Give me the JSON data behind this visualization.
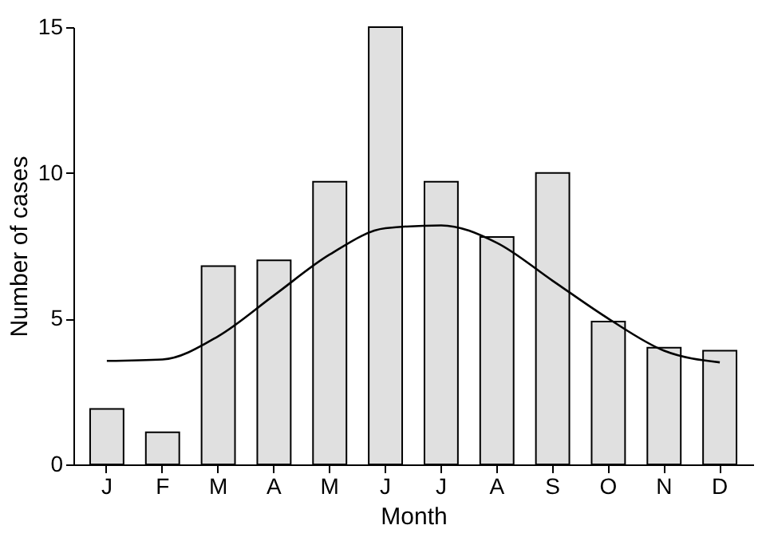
{
  "chart_data": {
    "type": "bar",
    "xlabel": "Month",
    "ylabel": "Number of cases",
    "categories": [
      "J",
      "F",
      "M",
      "A",
      "M",
      "J",
      "J",
      "A",
      "S",
      "O",
      "N",
      "D"
    ],
    "series": [
      {
        "color": "#e0e0e0",
        "values": [
          1.9,
          1.1,
          6.8,
          7.0,
          9.7,
          15,
          9.7,
          7.8,
          10,
          4.9,
          4.0,
          3.9
        ]
      },
      {
        "type": "line",
        "color": "#000000",
        "values": [
          3.55,
          3.6,
          4.4,
          5.8,
          7.2,
          8.1,
          8.2,
          7.6,
          6.3,
          5.0,
          3.9,
          3.5
        ]
      }
    ],
    "ylim": [
      0,
      15
    ],
    "yticks": [
      0,
      5,
      10,
      15
    ],
    "grid": false
  }
}
